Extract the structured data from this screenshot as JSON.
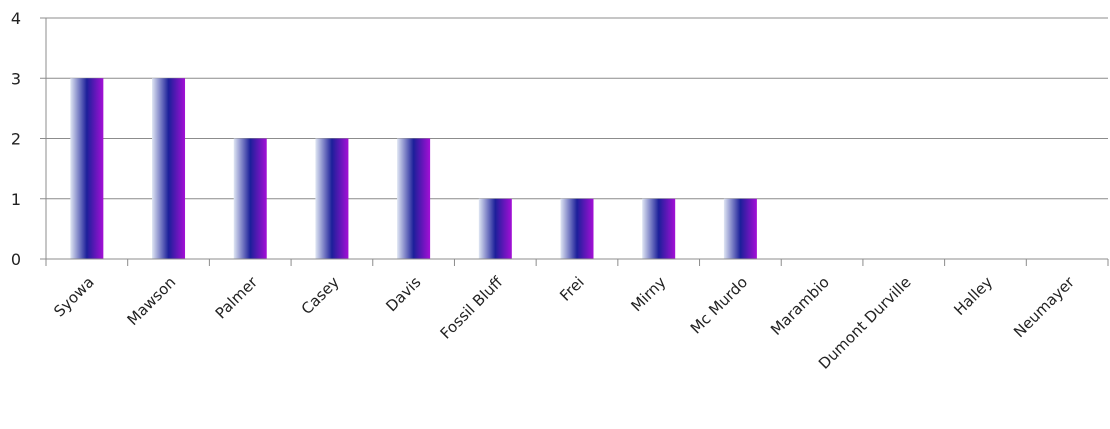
{
  "chart_data": {
    "type": "bar",
    "categories": [
      "Syowa",
      "Mawson",
      "Palmer",
      "Casey",
      "Davis",
      "Fossil Bluff",
      "Frei",
      "Mirny",
      "Mc Murdo",
      "Marambio",
      "Dumont Durville",
      "Halley",
      "Neumayer"
    ],
    "values": [
      3,
      3,
      2,
      2,
      2,
      1,
      1,
      1,
      1,
      0,
      0,
      0,
      0
    ],
    "ylim": [
      0,
      4
    ],
    "yticks": [
      "0",
      "1",
      "2",
      "3",
      "4"
    ],
    "grid": true,
    "title": "",
    "xlabel": "",
    "ylabel": "",
    "colors": {
      "bar_left": "#dfe6f3",
      "bar_mid": "#1c1f9a",
      "bar_right": "#a40fd6",
      "grid": "#8c8c8c",
      "axis": "#8c8c8c"
    }
  }
}
